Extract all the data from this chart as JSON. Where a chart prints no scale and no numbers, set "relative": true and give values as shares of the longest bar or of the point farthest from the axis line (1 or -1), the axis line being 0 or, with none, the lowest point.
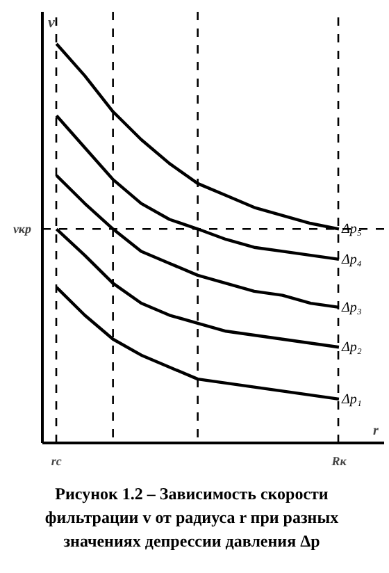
{
  "chart_data": {
    "type": "line",
    "relative": true,
    "xlabel": "r",
    "ylabel": "v",
    "title": "Рисунок 1.2 – Зависимость скорости фильтрации  v от радиуса r при разных значениях депрессии давления Δp",
    "categories": [
      "rc",
      null,
      null,
      null,
      null,
      null,
      null,
      null,
      null,
      null,
      "Rк"
    ],
    "grid": "x",
    "legend": false,
    "marker": "none",
    "line_style": "solid",
    "ref_lines": [
      {
        "axis": "y",
        "value": 0.536,
        "label": "vкр",
        "line_style": "dashed"
      }
    ],
    "series": [
      {
        "name": "Δp₅",
        "color": "#000000",
        "values": [
          1,
          0.92,
          0.83,
          0.76,
          0.7,
          0.65,
          0.62,
          0.59,
          0.57,
          0.55,
          0.536
        ]
      },
      {
        "name": "Δp₄",
        "color": "#000000",
        "values": [
          0.82,
          0.74,
          0.66,
          0.6,
          0.56,
          0.536,
          0.51,
          0.49,
          0.48,
          0.47,
          0.46
        ]
      },
      {
        "name": "Δp₃",
        "color": "#000000",
        "values": [
          0.67,
          0.6,
          0.536,
          0.48,
          0.45,
          0.42,
          0.4,
          0.38,
          0.37,
          0.35,
          0.34
        ]
      },
      {
        "name": "Δp₂",
        "color": "#000000",
        "values": [
          0.536,
          0.47,
          0.4,
          0.35,
          0.32,
          0.3,
          0.28,
          0.27,
          0.26,
          0.25,
          0.24
        ]
      },
      {
        "name": "Δp₁",
        "color": "#000000",
        "values": [
          0.39,
          0.32,
          0.26,
          0.22,
          0.19,
          0.16,
          0.15,
          0.14,
          0.13,
          0.12,
          0.11
        ]
      }
    ]
  }
}
